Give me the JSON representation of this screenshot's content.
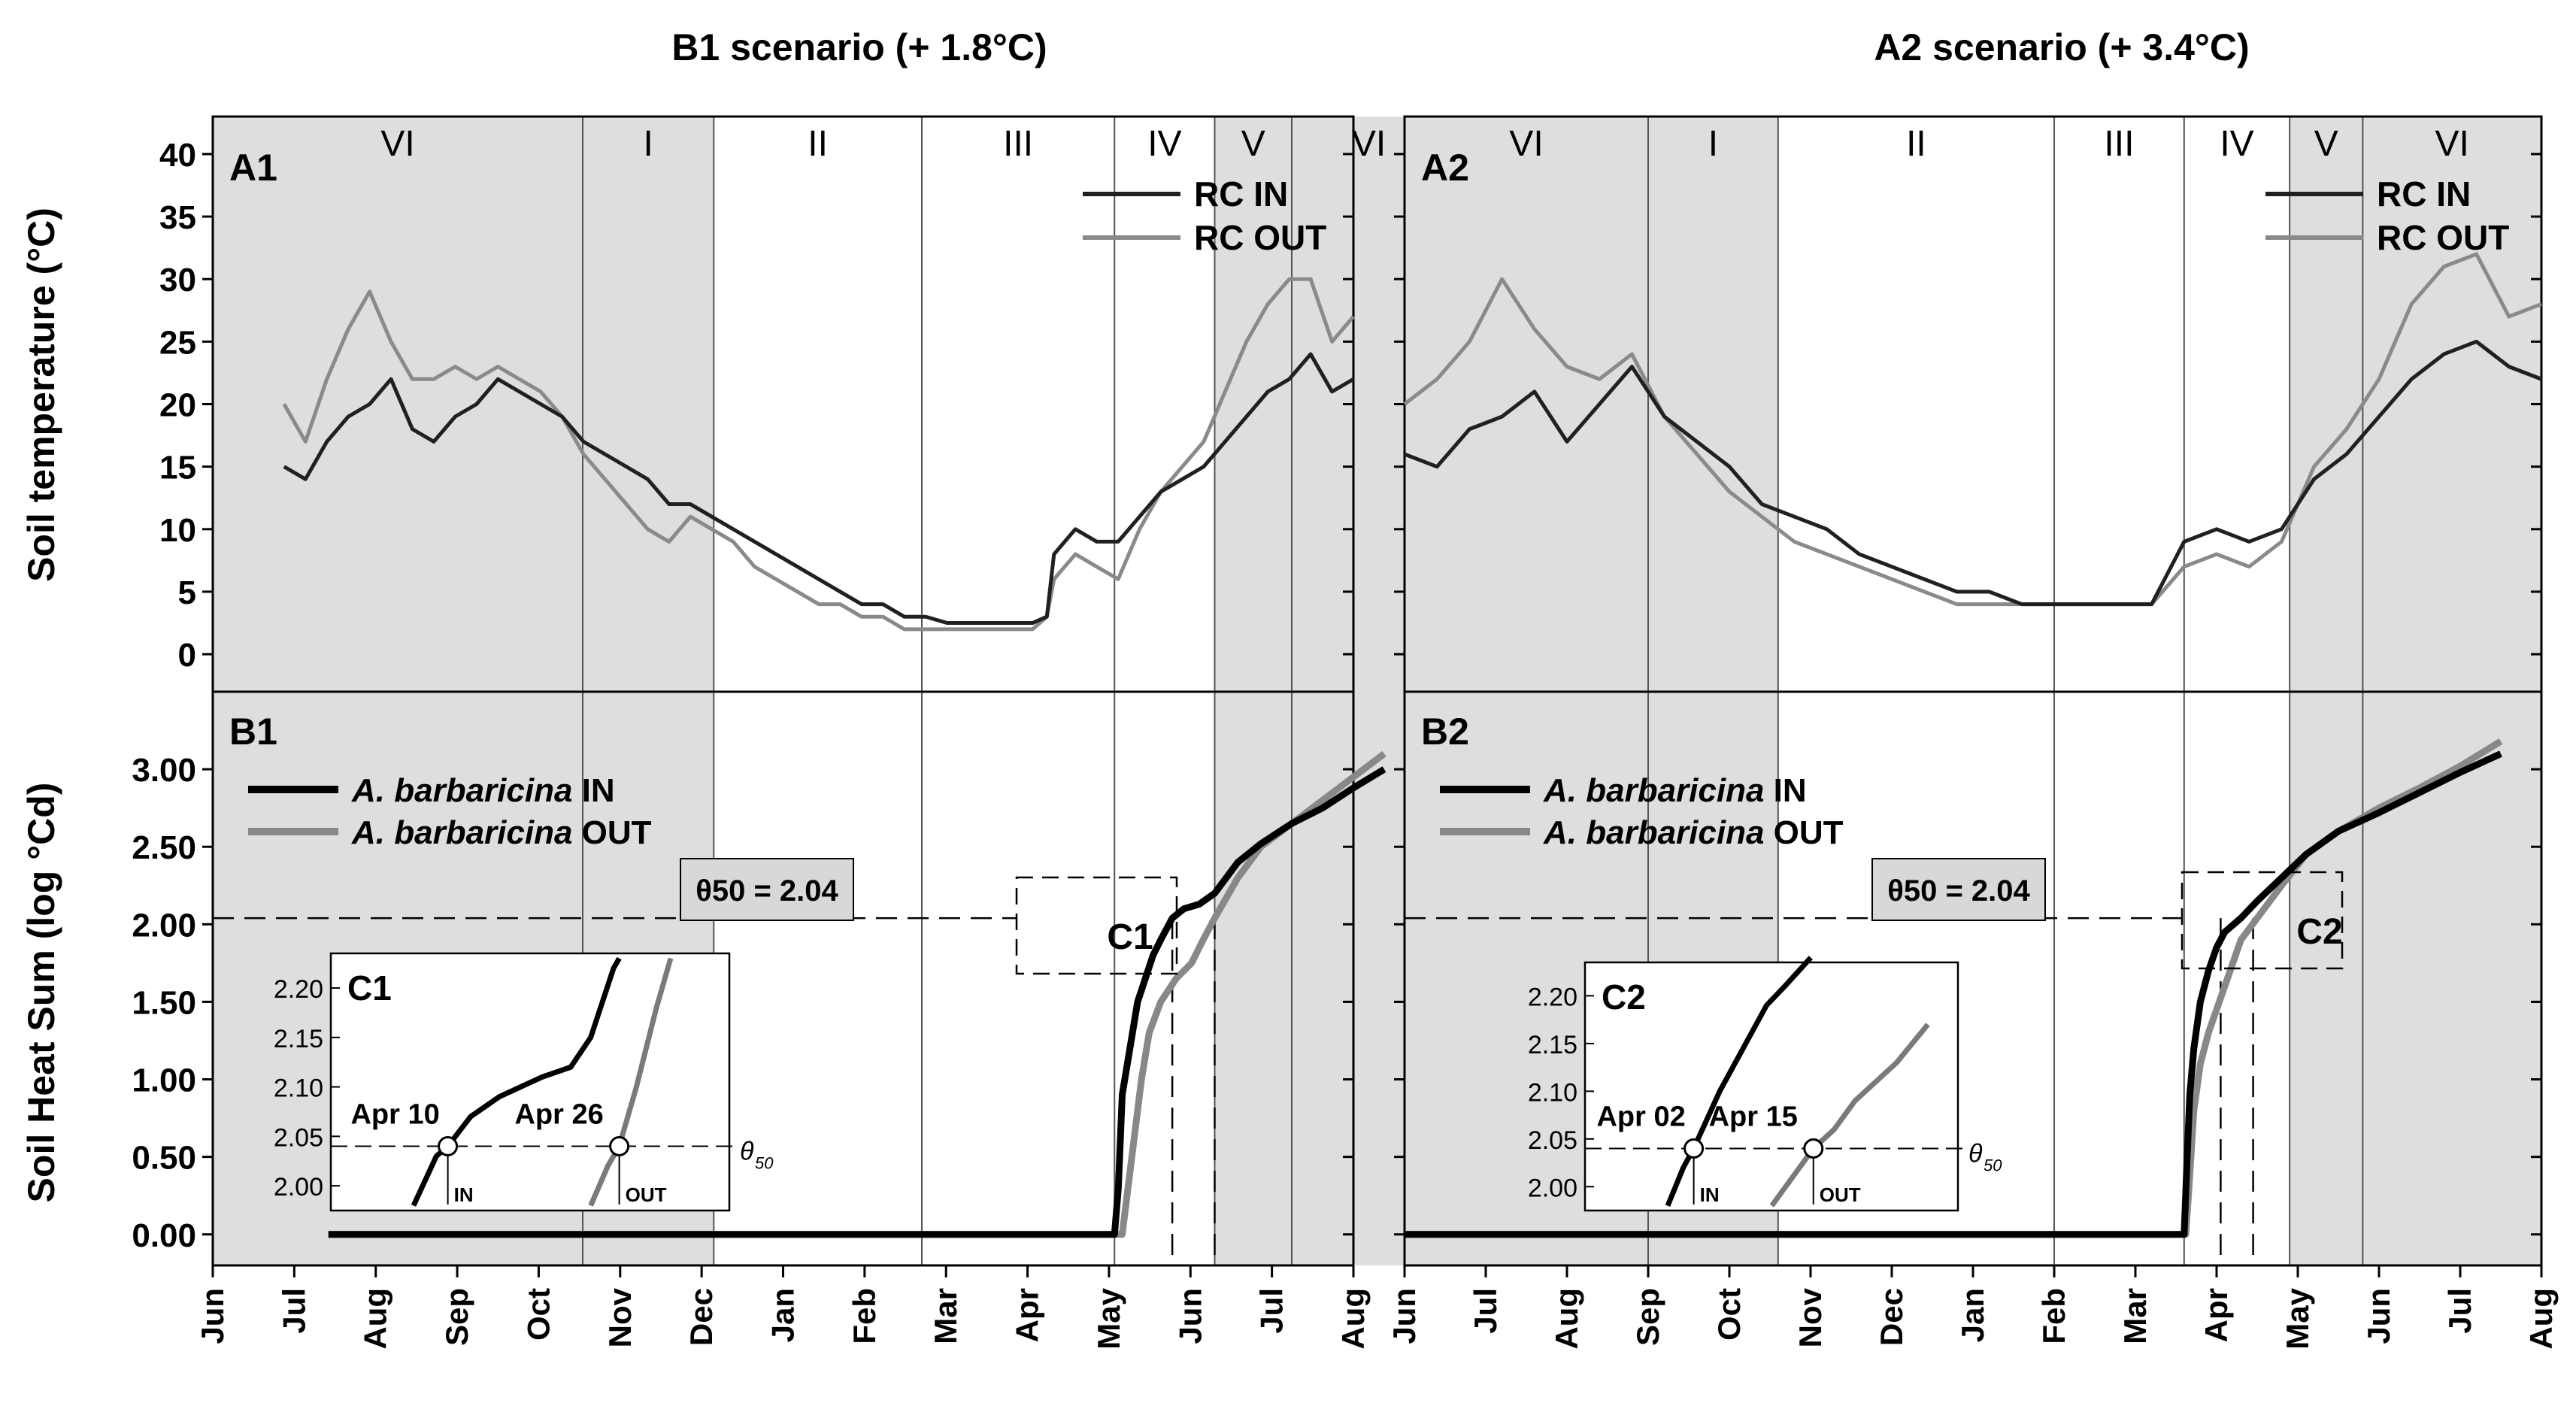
{
  "chart_data": {
    "type": "line",
    "months": [
      "Jun",
      "Jul",
      "Aug",
      "Sep",
      "Oct",
      "Nov",
      "Dec",
      "Jan",
      "Feb",
      "Mar",
      "Apr",
      "May",
      "Jun",
      "Jul",
      "Aug"
    ],
    "temperature_axis": {
      "label": "Soil temperature (°C)",
      "ticks": [
        0,
        5,
        10,
        15,
        20,
        25,
        30,
        35,
        40
      ],
      "ylim": [
        -3,
        43
      ]
    },
    "heatsum_axis": {
      "label": "Soil Heat Sum (log °Cd)",
      "ticks": [
        "0.00",
        "0.50",
        "1.00",
        "1.50",
        "2.00",
        "2.50",
        "3.00"
      ],
      "ylim": [
        -0.2,
        3.5
      ]
    },
    "panels": [
      {
        "title": "B1 scenario (+ 1.8°C)",
        "temp_label": "A1",
        "heat_label": "B1",
        "inset_label": "C1",
        "phases": [
          {
            "label": "VI",
            "start": 0,
            "end": 4.8,
            "shaded": true
          },
          {
            "label": "I",
            "start": 4.8,
            "end": 6.5,
            "shaded": true
          },
          {
            "label": "II",
            "start": 6.5,
            "end": 9.2,
            "shaded": false
          },
          {
            "label": "III",
            "start": 9.2,
            "end": 11.7,
            "shaded": false
          },
          {
            "label": "IV",
            "start": 11.7,
            "end": 13.0,
            "shaded": false
          },
          {
            "label": "V",
            "start": 13.0,
            "end": 14.0,
            "shaded": true
          },
          {
            "label": "VI",
            "start": 14.0,
            "end": 16.0,
            "shaded": true
          }
        ],
        "temp_series": [
          {
            "name": "RC IN",
            "color": "#202020",
            "x": [
              1,
              1.3,
              1.6,
              1.9,
              2.2,
              2.5,
              2.8,
              3.1,
              3.4,
              3.7,
              4.0,
              4.3,
              4.6,
              4.9,
              5.2,
              5.5,
              5.8,
              6.1,
              6.4,
              6.7,
              7.0,
              7.3,
              7.6,
              7.9,
              8.2,
              8.5,
              8.8,
              9.1,
              9.4,
              9.7,
              10.0,
              10.3,
              10.6,
              10.9,
              11.2,
              11.5,
              11.7,
              11.8,
              12.1,
              12.4,
              12.7,
              13.0,
              13.3,
              13.6,
              13.9,
              14.2,
              14.5,
              14.8,
              15.1,
              15.4,
              15.7,
              16.0
            ],
            "y": [
              15,
              14,
              17,
              19,
              20,
              22,
              18,
              17,
              19,
              20,
              22,
              21,
              20,
              19,
              17,
              16,
              15,
              14,
              12,
              12,
              11,
              10,
              9,
              8,
              7,
              6,
              5,
              4,
              4,
              3,
              3,
              2.5,
              2.5,
              2.5,
              2.5,
              2.5,
              3,
              8,
              10,
              9,
              9,
              11,
              13,
              14,
              15,
              17,
              19,
              21,
              22,
              24,
              21,
              22
            ]
          },
          {
            "name": "RC OUT",
            "color": "#8a8a8a",
            "x": [
              1,
              1.3,
              1.6,
              1.9,
              2.2,
              2.5,
              2.8,
              3.1,
              3.4,
              3.7,
              4.0,
              4.3,
              4.6,
              4.9,
              5.2,
              5.5,
              5.8,
              6.1,
              6.4,
              6.7,
              7.0,
              7.3,
              7.6,
              7.9,
              8.2,
              8.5,
              8.8,
              9.1,
              9.4,
              9.7,
              10.0,
              10.3,
              10.6,
              10.9,
              11.2,
              11.5,
              11.7,
              11.8,
              12.1,
              12.4,
              12.7,
              13.0,
              13.3,
              13.6,
              13.9,
              14.2,
              14.5,
              14.8,
              15.1,
              15.4,
              15.7,
              16.0
            ],
            "y": [
              20,
              17,
              22,
              26,
              29,
              25,
              22,
              22,
              23,
              22,
              23,
              22,
              21,
              19,
              16,
              14,
              12,
              10,
              9,
              11,
              10,
              9,
              7,
              6,
              5,
              4,
              4,
              3,
              3,
              2,
              2,
              2,
              2,
              2,
              2,
              2,
              3,
              6,
              8,
              7,
              6,
              10,
              13,
              15,
              17,
              21,
              25,
              28,
              30,
              30,
              25,
              27
            ]
          }
        ],
        "heat_series": [
          {
            "name": "A. barbaricina IN",
            "label_italic": "A. barbaricina",
            "label_suffix": "IN",
            "color": "#000000",
            "x": [
              1.5,
              11.7,
              11.75,
              11.8,
              11.9,
              12.0,
              12.1,
              12.2,
              12.3,
              12.45,
              12.6,
              12.8,
              13.0,
              13.3,
              13.6,
              14.0,
              14.4,
              14.8,
              15.2
            ],
            "y": [
              0,
              0,
              0.3,
              0.9,
              1.2,
              1.5,
              1.65,
              1.8,
              1.9,
              2.04,
              2.1,
              2.13,
              2.2,
              2.4,
              2.52,
              2.65,
              2.75,
              2.88,
              3.0
            ]
          },
          {
            "name": "A. barbaricina OUT",
            "label_italic": "A. barbaricina",
            "label_suffix": "OUT",
            "color": "#888888",
            "x": [
              1.5,
              11.8,
              11.85,
              11.95,
              12.05,
              12.15,
              12.3,
              12.5,
              12.7,
              12.85,
              13.0,
              13.3,
              13.6,
              14.0,
              14.4,
              14.8,
              15.2
            ],
            "y": [
              0,
              0,
              0.2,
              0.6,
              1.0,
              1.3,
              1.5,
              1.65,
              1.75,
              1.9,
              2.04,
              2.3,
              2.5,
              2.65,
              2.8,
              2.95,
              3.1
            ]
          }
        ],
        "theta_label": "θ50 = 2.04",
        "theta_value": 2.04,
        "dash_dates": [
          12.45,
          13.0
        ],
        "inset": {
          "ticks": [
            "2.00",
            "2.05",
            "2.10",
            "2.15",
            "2.20"
          ],
          "in_date": "Apr 10",
          "out_date": "Apr 26",
          "in_tag": "IN",
          "out_tag": "OUT",
          "theta_symbol": "θ",
          "theta_sub": "50",
          "in_curve": {
            "t": [
              0.0,
              0.08,
              0.12,
              0.2,
              0.3,
              0.45,
              0.55,
              0.62,
              0.7,
              0.72
            ],
            "y": [
              1.98,
              2.03,
              2.04,
              2.07,
              2.09,
              2.11,
              2.12,
              2.15,
              2.22,
              2.23
            ]
          },
          "out_curve": {
            "t": [
              0.62,
              0.68,
              0.72,
              0.78,
              0.85,
              0.9
            ],
            "y": [
              1.98,
              2.02,
              2.04,
              2.1,
              2.18,
              2.23
            ]
          },
          "in_cross_t": 0.12,
          "out_cross_t": 0.72
        }
      },
      {
        "title": "A2 scenario (+ 3.4°C)",
        "temp_label": "A2",
        "heat_label": "B2",
        "inset_label": "C2",
        "phases": [
          {
            "label": "VI",
            "start": 0,
            "end": 3.0,
            "shaded": true
          },
          {
            "label": "I",
            "start": 3.0,
            "end": 4.6,
            "shaded": true
          },
          {
            "label": "II",
            "start": 4.6,
            "end": 8.0,
            "shaded": false
          },
          {
            "label": "III",
            "start": 8.0,
            "end": 9.6,
            "shaded": false
          },
          {
            "label": "IV",
            "start": 9.6,
            "end": 10.9,
            "shaded": false
          },
          {
            "label": "V",
            "start": 10.9,
            "end": 11.8,
            "shaded": true
          },
          {
            "label": "VI",
            "start": 11.8,
            "end": 14.0,
            "shaded": true
          }
        ],
        "temp_series": [
          {
            "name": "RC IN",
            "color": "#202020",
            "x": [
              0,
              0.4,
              0.8,
              1.2,
              1.6,
              2.0,
              2.4,
              2.8,
              3.2,
              3.6,
              4.0,
              4.4,
              4.8,
              5.2,
              5.6,
              6.0,
              6.4,
              6.8,
              7.2,
              7.6,
              8.0,
              8.4,
              8.8,
              9.2,
              9.6,
              10.0,
              10.4,
              10.8,
              11.2,
              11.6,
              12.0,
              12.4,
              12.8,
              13.2,
              13.6,
              14.0
            ],
            "y": [
              16,
              15,
              18,
              19,
              21,
              17,
              20,
              23,
              19,
              17,
              15,
              12,
              11,
              10,
              8,
              7,
              6,
              5,
              5,
              4,
              4,
              4,
              4,
              4,
              9,
              10,
              9,
              10,
              14,
              16,
              19,
              22,
              24,
              25,
              23,
              22
            ]
          },
          {
            "name": "RC OUT",
            "color": "#8a8a8a",
            "x": [
              0,
              0.4,
              0.8,
              1.2,
              1.6,
              2.0,
              2.4,
              2.8,
              3.2,
              3.6,
              4.0,
              4.4,
              4.8,
              5.2,
              5.6,
              6.0,
              6.4,
              6.8,
              7.2,
              7.6,
              8.0,
              8.4,
              8.8,
              9.2,
              9.6,
              10.0,
              10.4,
              10.8,
              11.2,
              11.6,
              12.0,
              12.4,
              12.8,
              13.2,
              13.6,
              14.0
            ],
            "y": [
              20,
              22,
              25,
              30,
              26,
              23,
              22,
              24,
              19,
              16,
              13,
              11,
              9,
              8,
              7,
              6,
              5,
              4,
              4,
              4,
              4,
              4,
              4,
              4,
              7,
              8,
              7,
              9,
              15,
              18,
              22,
              28,
              31,
              32,
              27,
              28
            ]
          }
        ],
        "heat_series": [
          {
            "name": "A. barbaricina IN",
            "label_italic": "A. barbaricina",
            "label_suffix": "IN",
            "color": "#000000",
            "x": [
              0,
              9.6,
              9.63,
              9.67,
              9.72,
              9.8,
              9.9,
              10.0,
              10.1,
              10.3,
              10.5,
              10.8,
              11.1,
              11.5,
              12.0,
              12.5,
              13.0,
              13.5
            ],
            "y": [
              0,
              0,
              0.4,
              0.9,
              1.2,
              1.5,
              1.7,
              1.85,
              1.95,
              2.04,
              2.15,
              2.3,
              2.45,
              2.6,
              2.72,
              2.85,
              2.98,
              3.1
            ]
          },
          {
            "name": "A. barbaricina OUT",
            "label_italic": "A. barbaricina",
            "label_suffix": "OUT",
            "color": "#888888",
            "x": [
              0,
              9.62,
              9.66,
              9.72,
              9.8,
              9.9,
              10.0,
              10.1,
              10.3,
              10.5,
              10.8,
              11.1,
              11.5,
              12.0,
              12.5,
              13.0,
              13.5
            ],
            "y": [
              0,
              0,
              0.3,
              0.8,
              1.1,
              1.3,
              1.45,
              1.6,
              1.9,
              2.04,
              2.25,
              2.45,
              2.6,
              2.75,
              2.88,
              3.02,
              3.18
            ]
          }
        ],
        "theta_label": "θ50 = 2.04",
        "theta_value": 2.04,
        "dash_dates": [
          10.05,
          10.45
        ],
        "inset": {
          "ticks": [
            "2.00",
            "2.05",
            "2.10",
            "2.15",
            "2.20"
          ],
          "in_date": "Apr 02",
          "out_date": "Apr 15",
          "in_tag": "IN",
          "out_tag": "OUT",
          "theta_symbol": "θ",
          "theta_sub": "50",
          "in_curve": {
            "t": [
              0.0,
              0.06,
              0.1,
              0.2,
              0.3,
              0.38,
              0.45,
              0.55
            ],
            "y": [
              1.98,
              2.02,
              2.04,
              2.1,
              2.15,
              2.19,
              2.21,
              2.24
            ]
          },
          "out_curve": {
            "t": [
              0.4,
              0.48,
              0.56,
              0.64,
              0.72,
              0.8,
              0.88,
              1.0
            ],
            "y": [
              1.98,
              2.01,
              2.04,
              2.06,
              2.09,
              2.11,
              2.13,
              2.17
            ]
          },
          "in_cross_t": 0.1,
          "out_cross_t": 0.56
        }
      }
    ]
  }
}
